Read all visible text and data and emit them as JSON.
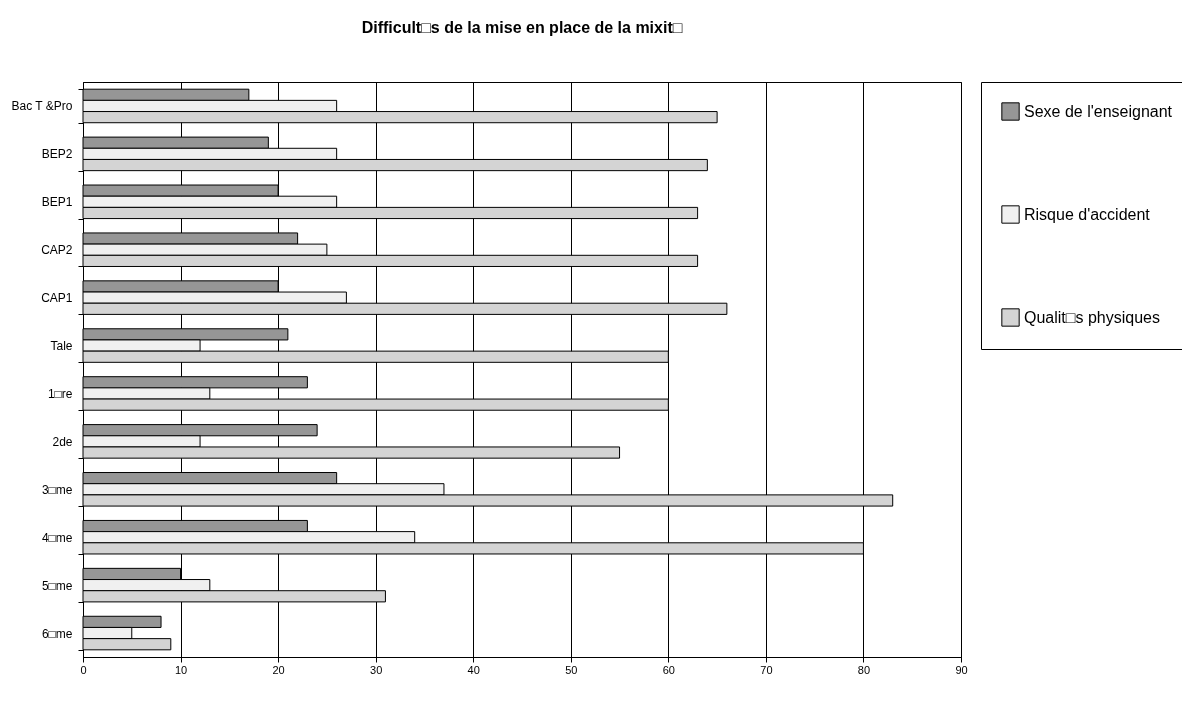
{
  "chart_data": {
    "type": "bar",
    "orientation": "horizontal",
    "title": "Difficult□s de la mise en place de la mixit□",
    "categories": [
      "Bac T &Pro",
      "BEP2",
      "BEP1",
      "CAP2",
      "CAP1",
      "Tale",
      "1□re",
      "2de",
      "3□me",
      "4□me",
      "5□me",
      "6□me"
    ],
    "series": [
      {
        "name": "Sexe de l'enseignant",
        "color": "#969696",
        "values": [
          17,
          19,
          20,
          22,
          20,
          21,
          23,
          24,
          26,
          23,
          10,
          8
        ]
      },
      {
        "name": "Risque d'accident",
        "color": "#f0f0f0",
        "values": [
          26,
          26,
          26,
          25,
          27,
          12,
          13,
          12,
          37,
          34,
          13,
          5
        ]
      },
      {
        "name": "Qualit□s physiques",
        "color": "#d4d4d4",
        "values": [
          65,
          64,
          63,
          63,
          66,
          60,
          60,
          55,
          83,
          80,
          31,
          9
        ]
      }
    ],
    "xlim": [
      0,
      90
    ],
    "xticks": [
      0,
      10,
      20,
      30,
      40,
      50,
      60,
      70,
      80,
      90
    ],
    "grid": "x",
    "legend": "right"
  }
}
